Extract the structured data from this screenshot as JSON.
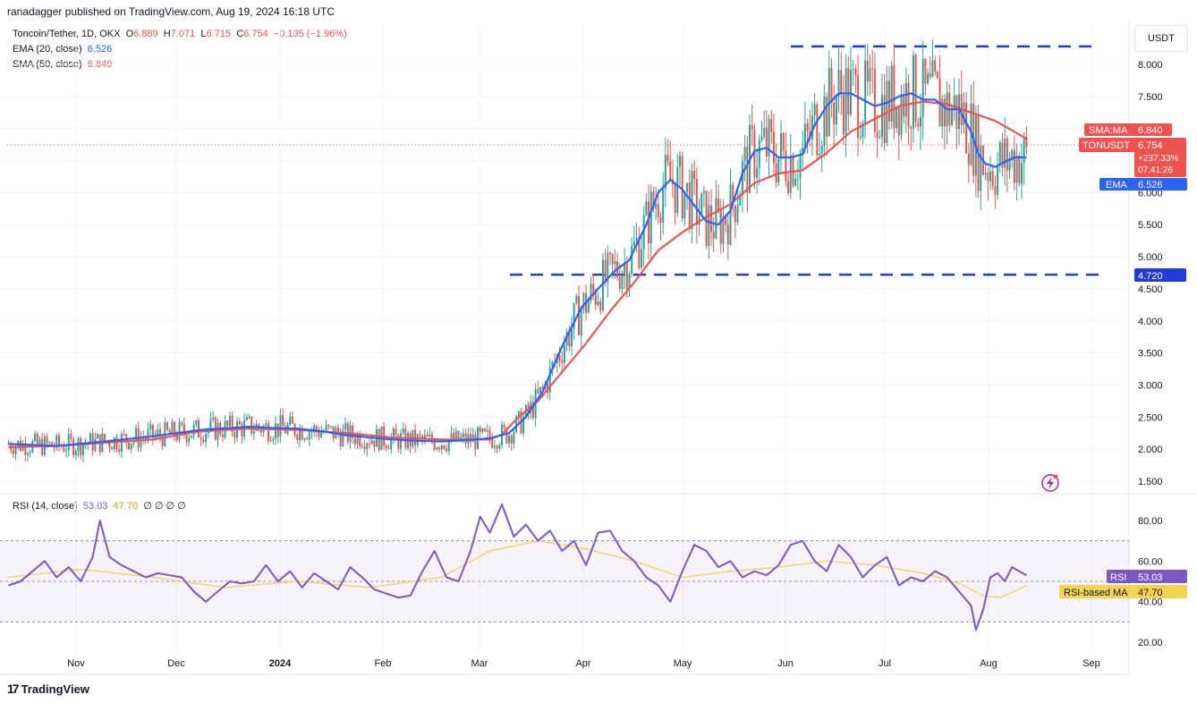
{
  "header": {
    "text": "ranadagger published on TradingView.com, Aug 19, 2024 16:18 UTC"
  },
  "legend": {
    "symbol": "Toncoin/Tether, 1D, OKX",
    "o_label": "O",
    "o": "6.889",
    "h_label": "H",
    "h": "7.071",
    "l_label": "L",
    "l": "6.715",
    "c_label": "C",
    "c": "6.754",
    "change": "−0.135 (−1.96%)",
    "ema_label": "EMA (20, close)",
    "ema": "6.526",
    "sma_label": "SMA (50, close)",
    "sma": "6.840",
    "rsi_label": "RSI (14, close)",
    "rsi": "53.03",
    "rsi_ma": "47.70",
    "rsi_extra": "∅ ∅ ∅ ∅"
  },
  "currency_button": "USDT",
  "tags": {
    "sma_name": "SMA:MA",
    "sma_value": "6.840",
    "price_name": "TONUSDT",
    "price_value": "6.754",
    "price_change": "+237.33%",
    "countdown": "07:41:26",
    "ema_name": "EMA",
    "ema_value": "6.526",
    "level_value": "4.720",
    "rsi_name": "RSI",
    "rsi_value": "53.03",
    "rsi_ma_name": "RSI-based MA",
    "rsi_ma_value": "47.70"
  },
  "footer": {
    "brand": "TradingView",
    "logo": "17"
  },
  "colors": {
    "up": "#26a69a",
    "down": "#ef5350",
    "ema": "#2962ff",
    "sma": "#ef5350",
    "rsi": "#7e57c2",
    "rsi_ma": "#f3d352",
    "level": "#1e3dd6"
  },
  "chart_data": {
    "type": "candlestick",
    "title": "Toncoin/Tether, 1D, OKX",
    "price_axis": {
      "ticks": [
        "8.000",
        "7.500",
        "7.000",
        "6.500",
        "6.000",
        "5.500",
        "5.000",
        "4.500",
        "4.000",
        "3.500",
        "3.000",
        "2.500",
        "2.000",
        "1.500"
      ]
    },
    "rsi_axis": {
      "ticks": [
        "80.00",
        "60.00",
        "40.00",
        "20.00"
      ],
      "bands": [
        30,
        70
      ]
    },
    "x_ticks": [
      "Nov",
      "Dec",
      "2024",
      "Feb",
      "Mar",
      "Apr",
      "May",
      "Jun",
      "Jul",
      "Aug",
      "Sep"
    ],
    "horizontal_levels": [
      8.28,
      4.72
    ],
    "ema_path": [
      [
        0,
        2.08
      ],
      [
        20,
        2.05
      ],
      [
        40,
        2.12
      ],
      [
        60,
        2.2
      ],
      [
        80,
        2.3
      ],
      [
        100,
        2.35
      ],
      [
        110,
        2.33
      ],
      [
        120,
        2.32
      ],
      [
        130,
        2.28
      ],
      [
        140,
        2.22
      ],
      [
        150,
        2.18
      ],
      [
        160,
        2.15
      ],
      [
        170,
        2.13
      ],
      [
        180,
        2.12
      ],
      [
        190,
        2.14
      ],
      [
        200,
        2.17
      ],
      [
        208,
        2.25
      ],
      [
        215,
        2.5
      ],
      [
        222,
        2.9
      ],
      [
        230,
        3.6
      ],
      [
        238,
        4.2
      ],
      [
        245,
        4.5
      ],
      [
        252,
        4.78
      ],
      [
        258,
        4.95
      ],
      [
        265,
        5.5
      ],
      [
        270,
        6.0
      ],
      [
        275,
        6.2
      ],
      [
        280,
        6.05
      ],
      [
        285,
        5.8
      ],
      [
        290,
        5.55
      ],
      [
        295,
        5.5
      ],
      [
        300,
        5.72
      ],
      [
        305,
        6.3
      ],
      [
        310,
        6.65
      ],
      [
        315,
        6.7
      ],
      [
        320,
        6.55
      ],
      [
        325,
        6.55
      ],
      [
        330,
        6.6
      ],
      [
        335,
        7.05
      ],
      [
        340,
        7.35
      ],
      [
        345,
        7.55
      ],
      [
        350,
        7.55
      ],
      [
        355,
        7.45
      ],
      [
        360,
        7.35
      ],
      [
        365,
        7.4
      ],
      [
        370,
        7.5
      ],
      [
        375,
        7.55
      ],
      [
        380,
        7.45
      ],
      [
        385,
        7.45
      ],
      [
        390,
        7.3
      ],
      [
        395,
        7.3
      ],
      [
        400,
        6.95
      ],
      [
        403,
        6.6
      ],
      [
        406,
        6.45
      ],
      [
        410,
        6.4
      ],
      [
        414,
        6.48
      ],
      [
        418,
        6.55
      ],
      [
        423,
        6.55
      ]
    ],
    "sma_path": [
      [
        0,
        2.03
      ],
      [
        20,
        2.05
      ],
      [
        40,
        2.1
      ],
      [
        60,
        2.15
      ],
      [
        80,
        2.28
      ],
      [
        100,
        2.32
      ],
      [
        120,
        2.3
      ],
      [
        140,
        2.25
      ],
      [
        160,
        2.18
      ],
      [
        180,
        2.15
      ],
      [
        200,
        2.15
      ],
      [
        205,
        2.23
      ],
      [
        212,
        2.5
      ],
      [
        220,
        2.75
      ],
      [
        230,
        3.2
      ],
      [
        240,
        3.65
      ],
      [
        250,
        4.15
      ],
      [
        260,
        4.6
      ],
      [
        270,
        5.1
      ],
      [
        280,
        5.38
      ],
      [
        290,
        5.62
      ],
      [
        300,
        5.82
      ],
      [
        310,
        6.15
      ],
      [
        320,
        6.3
      ],
      [
        330,
        6.35
      ],
      [
        340,
        6.62
      ],
      [
        350,
        6.95
      ],
      [
        360,
        7.15
      ],
      [
        370,
        7.35
      ],
      [
        380,
        7.42
      ],
      [
        390,
        7.38
      ],
      [
        400,
        7.25
      ],
      [
        410,
        7.12
      ],
      [
        418,
        6.95
      ],
      [
        423,
        6.84
      ]
    ],
    "rsi_path": [
      [
        0,
        48
      ],
      [
        5,
        50
      ],
      [
        10,
        55
      ],
      [
        15,
        60
      ],
      [
        20,
        52
      ],
      [
        25,
        57
      ],
      [
        30,
        50
      ],
      [
        35,
        62
      ],
      [
        38,
        80
      ],
      [
        42,
        62
      ],
      [
        47,
        58
      ],
      [
        52,
        55
      ],
      [
        57,
        52
      ],
      [
        62,
        54
      ],
      [
        67,
        53
      ],
      [
        72,
        52
      ],
      [
        77,
        45
      ],
      [
        82,
        40
      ],
      [
        87,
        45
      ],
      [
        92,
        50
      ],
      [
        97,
        49
      ],
      [
        102,
        50
      ],
      [
        107,
        58
      ],
      [
        112,
        50
      ],
      [
        117,
        55
      ],
      [
        122,
        47
      ],
      [
        127,
        54
      ],
      [
        132,
        50
      ],
      [
        137,
        46
      ],
      [
        142,
        57
      ],
      [
        147,
        52
      ],
      [
        152,
        46
      ],
      [
        157,
        44
      ],
      [
        162,
        42
      ],
      [
        167,
        43
      ],
      [
        172,
        55
      ],
      [
        177,
        65
      ],
      [
        182,
        52
      ],
      [
        187,
        50
      ],
      [
        192,
        65
      ],
      [
        196,
        82
      ],
      [
        200,
        74
      ],
      [
        205,
        88
      ],
      [
        210,
        72
      ],
      [
        215,
        78
      ],
      [
        220,
        70
      ],
      [
        225,
        75
      ],
      [
        230,
        65
      ],
      [
        235,
        70
      ],
      [
        240,
        58
      ],
      [
        245,
        74
      ],
      [
        250,
        75
      ],
      [
        255,
        65
      ],
      [
        260,
        60
      ],
      [
        265,
        52
      ],
      [
        270,
        48
      ],
      [
        275,
        40
      ],
      [
        280,
        55
      ],
      [
        285,
        68
      ],
      [
        290,
        65
      ],
      [
        295,
        57
      ],
      [
        300,
        60
      ],
      [
        305,
        52
      ],
      [
        310,
        55
      ],
      [
        315,
        53
      ],
      [
        320,
        58
      ],
      [
        325,
        68
      ],
      [
        330,
        70
      ],
      [
        335,
        60
      ],
      [
        340,
        55
      ],
      [
        345,
        68
      ],
      [
        350,
        62
      ],
      [
        355,
        52
      ],
      [
        360,
        58
      ],
      [
        365,
        62
      ],
      [
        370,
        48
      ],
      [
        375,
        52
      ],
      [
        380,
        50
      ],
      [
        385,
        55
      ],
      [
        390,
        52
      ],
      [
        395,
        45
      ],
      [
        400,
        38
      ],
      [
        402,
        26
      ],
      [
        405,
        36
      ],
      [
        408,
        52
      ],
      [
        411,
        54
      ],
      [
        414,
        50
      ],
      [
        417,
        57
      ],
      [
        420,
        55
      ],
      [
        423,
        53
      ]
    ],
    "rsi_ma_path": [
      [
        0,
        52
      ],
      [
        30,
        56
      ],
      [
        60,
        52
      ],
      [
        90,
        47
      ],
      [
        120,
        50
      ],
      [
        150,
        47
      ],
      [
        180,
        52
      ],
      [
        200,
        65
      ],
      [
        220,
        70
      ],
      [
        240,
        66
      ],
      [
        260,
        60
      ],
      [
        280,
        52
      ],
      [
        300,
        55
      ],
      [
        320,
        57
      ],
      [
        340,
        60
      ],
      [
        360,
        58
      ],
      [
        380,
        54
      ],
      [
        395,
        49
      ],
      [
        405,
        43
      ],
      [
        412,
        42
      ],
      [
        418,
        45
      ],
      [
        423,
        48
      ]
    ]
  }
}
